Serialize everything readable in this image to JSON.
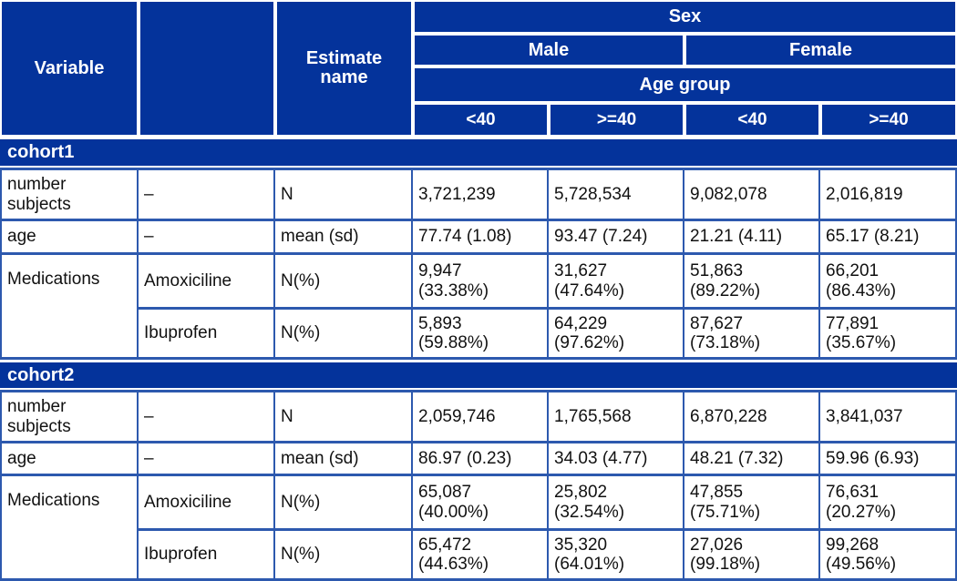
{
  "colors": {
    "header_bg": "#04339b",
    "section_bg": "#04339b",
    "grid_line": "#2d59ae",
    "header_text": "#ffffff",
    "body_text": "#111111"
  },
  "header": {
    "variable_label": "Variable",
    "level_label": "",
    "estimate_label": "Estimate name",
    "sex_label": "Sex",
    "male_label": "Male",
    "female_label": "Female",
    "age_group_label": "Age group",
    "age_bins": [
      "<40",
      ">=40",
      "<40",
      ">=40"
    ]
  },
  "sections": [
    {
      "label": "cohort1",
      "rows": [
        {
          "variable": "number subjects",
          "level": "–",
          "estimate": "N",
          "values": [
            "3,721,239",
            "5,728,534",
            "9,082,078",
            "2,016,819"
          ]
        },
        {
          "variable": "age",
          "level": "–",
          "estimate": "mean (sd)",
          "values": [
            "77.74 (1.08)",
            "93.47 (7.24)",
            "21.21 (4.11)",
            "65.17 (8.21)"
          ]
        },
        {
          "variable": "Medications",
          "level": "Amoxiciline",
          "estimate": "N(%)",
          "values": [
            "9,947 (33.38%)",
            "31,627 (47.64%)",
            "51,863 (89.22%)",
            "66,201 (86.43%)"
          ]
        },
        {
          "level": "Ibuprofen",
          "estimate": "N(%)",
          "values": [
            "5,893 (59.88%)",
            "64,229 (97.62%)",
            "87,627 (73.18%)",
            "77,891 (35.67%)"
          ]
        }
      ]
    },
    {
      "label": "cohort2",
      "rows": [
        {
          "variable": "number subjects",
          "level": "–",
          "estimate": "N",
          "values": [
            "2,059,746",
            "1,765,568",
            "6,870,228",
            "3,841,037"
          ]
        },
        {
          "variable": "age",
          "level": "–",
          "estimate": "mean (sd)",
          "values": [
            "86.97 (0.23)",
            "34.03 (4.77)",
            "48.21 (7.32)",
            "59.96 (6.93)"
          ]
        },
        {
          "variable": "Medications",
          "level": "Amoxiciline",
          "estimate": "N(%)",
          "values": [
            "65,087 (40.00%)",
            "25,802 (32.54%)",
            "47,855 (75.71%)",
            "76,631 (20.27%)"
          ]
        },
        {
          "level": "Ibuprofen",
          "estimate": "N(%)",
          "values": [
            "65,472 (44.63%)",
            "35,320 (64.01%)",
            "27,026 (99.18%)",
            "99,268 (49.56%)"
          ]
        }
      ]
    }
  ],
  "chart_data": {
    "type": "table",
    "column_groups": {
      "sex": [
        "Male",
        "Female"
      ],
      "age_group": [
        "<40",
        ">=40",
        "<40",
        ">=40"
      ]
    },
    "columns": [
      "Variable",
      "",
      "Estimate name",
      "Male <40",
      "Male >=40",
      "Female <40",
      "Female >=40"
    ],
    "rows": [
      [
        "cohort1",
        "",
        "",
        "",
        "",
        "",
        ""
      ],
      [
        "number subjects",
        "–",
        "N",
        "3,721,239",
        "5,728,534",
        "9,082,078",
        "2,016,819"
      ],
      [
        "age",
        "–",
        "mean (sd)",
        "77.74 (1.08)",
        "93.47 (7.24)",
        "21.21 (4.11)",
        "65.17 (8.21)"
      ],
      [
        "Medications",
        "Amoxiciline",
        "N(%)",
        "9,947 (33.38%)",
        "31,627 (47.64%)",
        "51,863 (89.22%)",
        "66,201 (86.43%)"
      ],
      [
        "",
        "Ibuprofen",
        "N(%)",
        "5,893 (59.88%)",
        "64,229 (97.62%)",
        "87,627 (73.18%)",
        "77,891 (35.67%)"
      ],
      [
        "cohort2",
        "",
        "",
        "",
        "",
        "",
        ""
      ],
      [
        "number subjects",
        "–",
        "N",
        "2,059,746",
        "1,765,568",
        "6,870,228",
        "3,841,037"
      ],
      [
        "age",
        "–",
        "mean (sd)",
        "86.97 (0.23)",
        "34.03 (4.77)",
        "48.21 (7.32)",
        "59.96 (6.93)"
      ],
      [
        "Medications",
        "Amoxiciline",
        "N(%)",
        "65,087 (40.00%)",
        "25,802 (32.54%)",
        "47,855 (75.71%)",
        "76,631 (20.27%)"
      ],
      [
        "",
        "Ibuprofen",
        "N(%)",
        "65,472 (44.63%)",
        "35,320 (64.01%)",
        "27,026 (99.18%)",
        "99,268 (49.56%)"
      ]
    ]
  }
}
